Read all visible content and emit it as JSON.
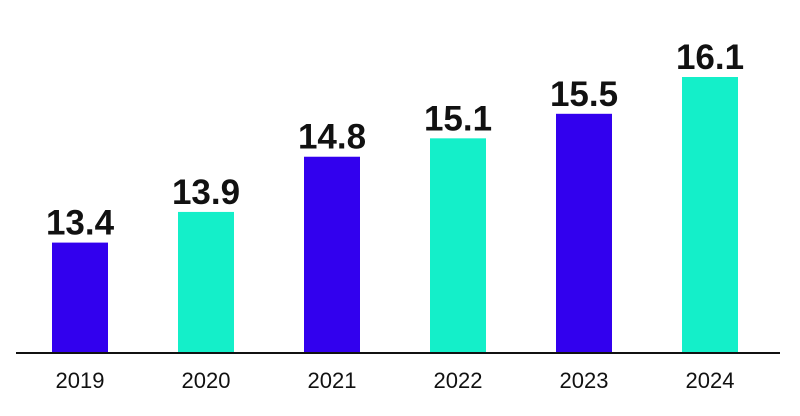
{
  "chart_data": {
    "type": "bar",
    "categories": [
      "2019",
      "2020",
      "2021",
      "2022",
      "2023",
      "2024"
    ],
    "values": [
      13.4,
      13.9,
      14.8,
      15.1,
      15.5,
      16.1
    ],
    "value_labels": [
      "13.4",
      "13.9",
      "14.8",
      "15.1",
      "15.5",
      "16.1"
    ],
    "title": "",
    "xlabel": "",
    "ylabel": "",
    "ylim": [
      11.6,
      16.1
    ],
    "grid": false,
    "legend": "none",
    "bar_colors": [
      "#3200EE",
      "#14EFC9",
      "#3200EE",
      "#14EFC9",
      "#3200EE",
      "#14EFC9"
    ],
    "axis_color": "#111111",
    "text_color": "#111111"
  }
}
